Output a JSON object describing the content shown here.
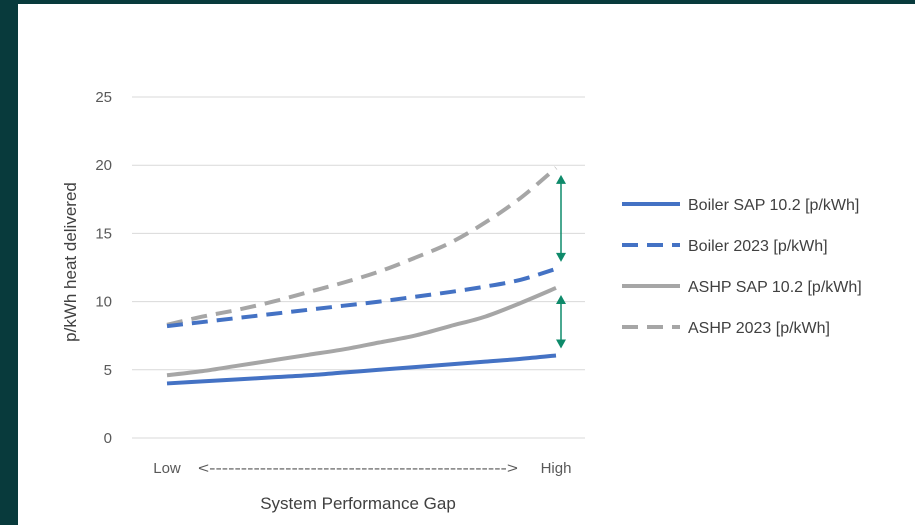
{
  "chart_data": {
    "type": "line",
    "xlabel": "System Performance Gap",
    "ylabel": "p/kWh heat delivered",
    "x_low_label": "Low",
    "x_arrow_label": "<----------------------------------------------->",
    "x_high_label": "High",
    "ylim": [
      0,
      25
    ],
    "yticks": [
      0,
      5,
      10,
      15,
      20,
      25
    ],
    "grid": true,
    "legend_position": "right",
    "x": [
      0,
      1,
      2,
      3,
      4,
      5,
      6,
      7,
      8,
      9,
      10,
      11
    ],
    "series": [
      {
        "name": "Boiler SAP 10.2 [p/kWh]",
        "color": "#4472c4",
        "dash": "solid",
        "values": [
          4.0,
          4.15,
          4.3,
          4.45,
          4.6,
          4.8,
          5.0,
          5.2,
          5.4,
          5.6,
          5.8,
          6.05
        ]
      },
      {
        "name": "Boiler 2023 [p/kWh]",
        "color": "#4472c4",
        "dash": "dashed",
        "values": [
          8.2,
          8.5,
          8.8,
          9.1,
          9.4,
          9.7,
          10.0,
          10.35,
          10.7,
          11.1,
          11.6,
          12.4
        ]
      },
      {
        "name": "ASHP SAP 10.2 [p/kWh]",
        "color": "#a6a6a6",
        "dash": "solid",
        "values": [
          4.6,
          4.9,
          5.3,
          5.7,
          6.1,
          6.5,
          7.0,
          7.5,
          8.2,
          8.9,
          9.9,
          11.0
        ]
      },
      {
        "name": "ASHP 2023 [p/kWh]",
        "color": "#a6a6a6",
        "dash": "dashed",
        "values": [
          8.3,
          8.9,
          9.4,
          10.0,
          10.7,
          11.4,
          12.2,
          13.2,
          14.3,
          15.8,
          17.6,
          19.8
        ]
      }
    ],
    "annotations": [
      {
        "type": "double-arrow",
        "x": 11,
        "from": 12.4,
        "to": 19.8,
        "color": "#0e8a6a"
      },
      {
        "type": "double-arrow",
        "x": 11,
        "from": 6.05,
        "to": 11.0,
        "color": "#0e8a6a"
      }
    ]
  }
}
